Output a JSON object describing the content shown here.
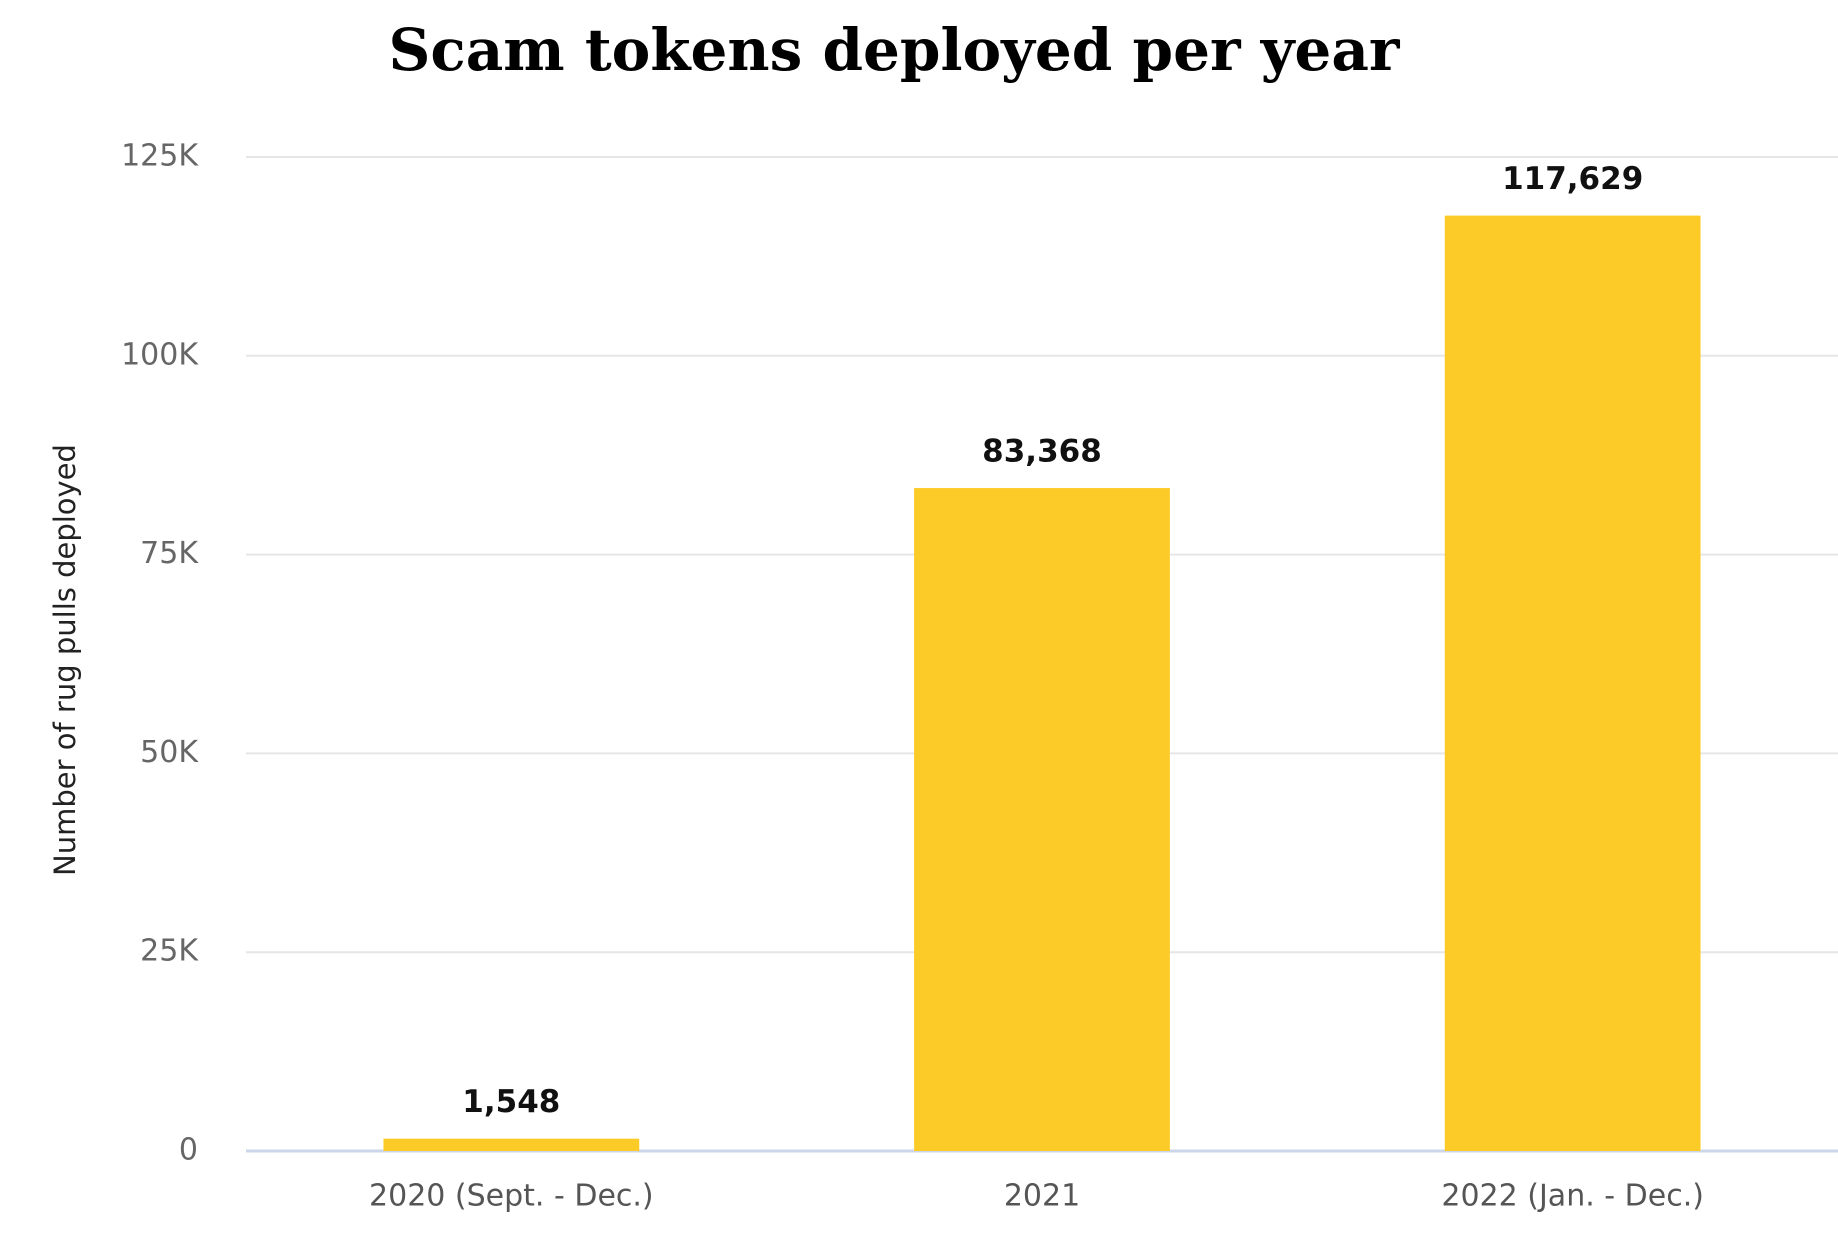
{
  "chart_data": {
    "type": "bar",
    "title": "Scam tokens deployed per year",
    "y_label": "Number of rug pulls deployed",
    "categories": [
      "2020 (Sept. - Dec.)",
      "2021",
      "2022 (Jan. - Dec.)"
    ],
    "values": [
      1548,
      83368,
      117629
    ],
    "value_labels": [
      "1,548",
      "83,368",
      "117,629"
    ],
    "color": "#fdcb27",
    "ylim": [
      0,
      125000
    ],
    "yticks": [
      0,
      {
        "value": 25000,
        "label": "25K"
      },
      {
        "value": 50000,
        "label": "50K"
      },
      {
        "value": 75000,
        "label": "75K"
      },
      {
        "value": 100000,
        "label": "100K"
      },
      {
        "value": 125000,
        "label": "125K"
      }
    ],
    "grid": true
  }
}
